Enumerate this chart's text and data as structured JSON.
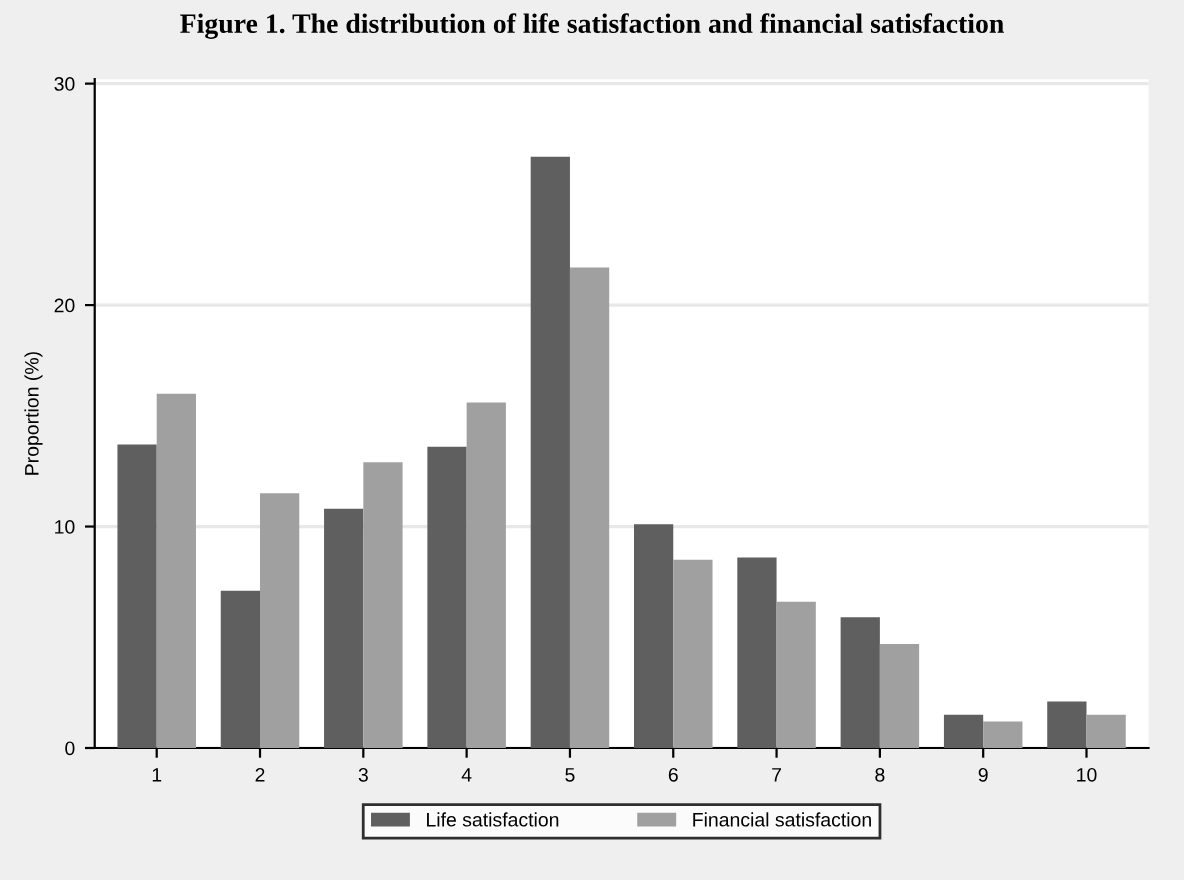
{
  "chart_data": {
    "type": "bar",
    "title": "Figure 1. The distribution of life satisfaction and financial satisfaction",
    "ylabel": "Proportion (%)",
    "categories": [
      "1",
      "2",
      "3",
      "4",
      "5",
      "6",
      "7",
      "8",
      "9",
      "10"
    ],
    "series": [
      {
        "name": "Life satisfaction",
        "color": "#5f5f5f",
        "values": [
          13.7,
          7.1,
          10.8,
          13.6,
          26.7,
          10.1,
          8.6,
          5.9,
          1.5,
          2.1
        ]
      },
      {
        "name": "Financial satisfaction",
        "color": "#a0a0a0",
        "values": [
          16.0,
          11.5,
          12.9,
          15.6,
          21.7,
          8.5,
          6.6,
          4.7,
          1.2,
          1.5
        ]
      }
    ],
    "ylim": [
      0,
      30.2
    ],
    "yticks": [
      0,
      10,
      20,
      30
    ],
    "grid": "y",
    "legend": "bottom"
  }
}
